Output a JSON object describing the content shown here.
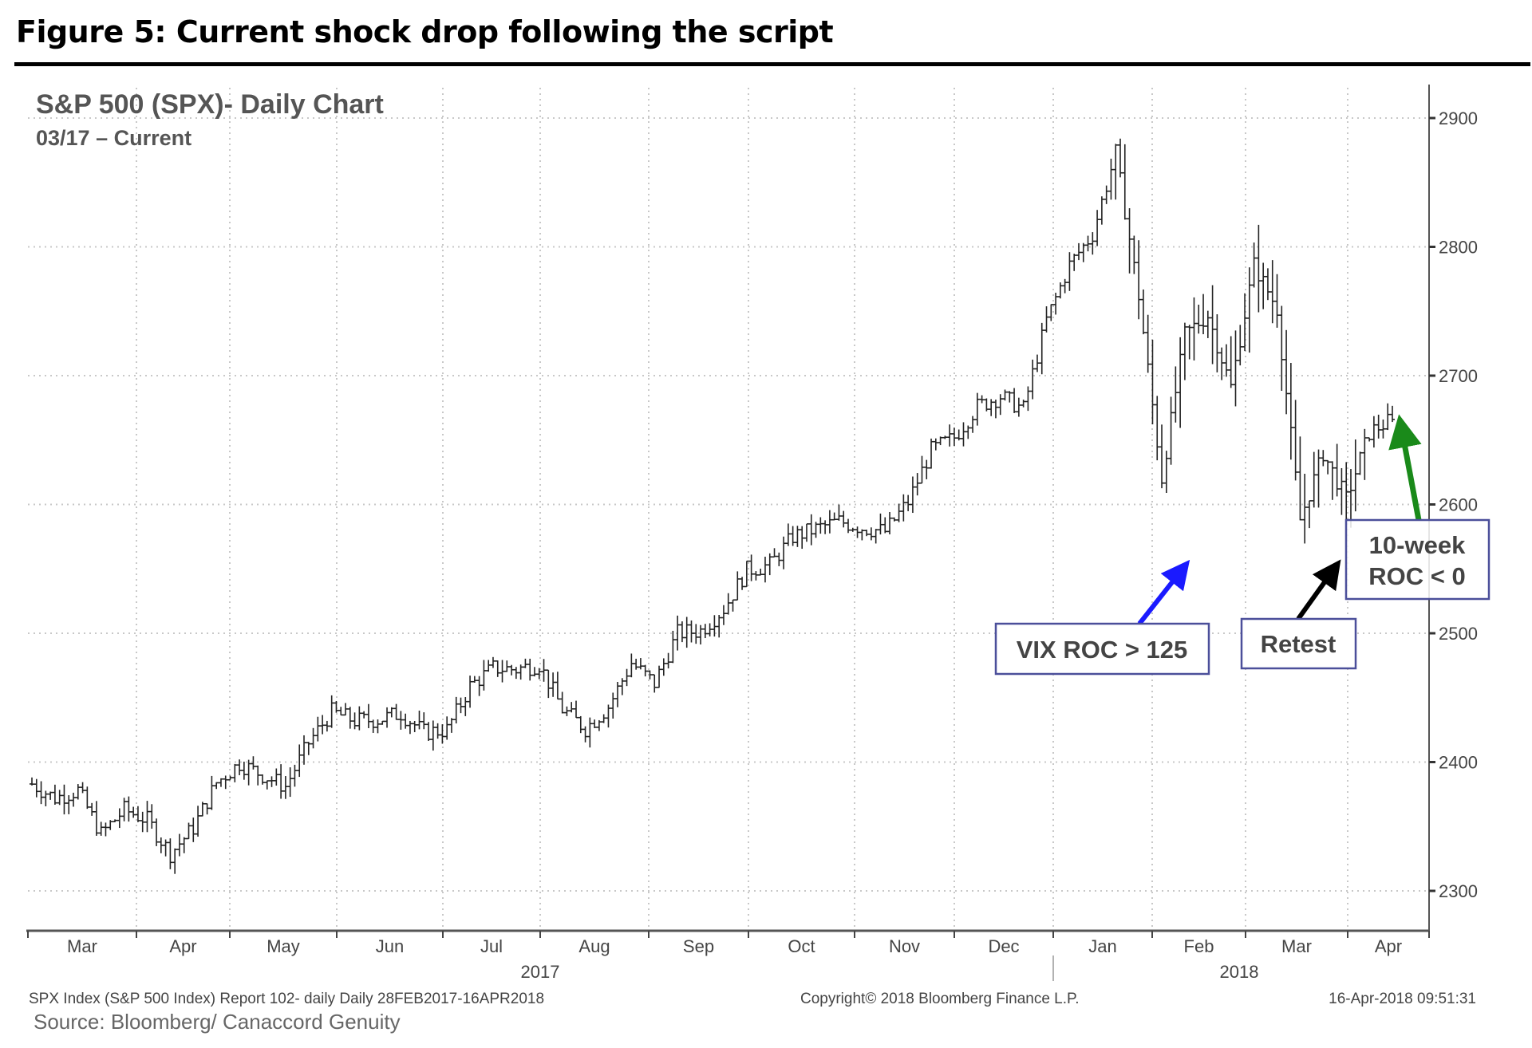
{
  "figure_title": "Figure 5: Current shock drop following the script",
  "chart_data": {
    "type": "bar",
    "subtype": "ohlc-daily",
    "title": "S&P 500 (SPX)- Daily Chart",
    "subtitle": "03/17 – Current",
    "ylim": [
      2270,
      2920
    ],
    "yticks": [
      2300,
      2400,
      2500,
      2600,
      2700,
      2800,
      2900
    ],
    "ytick_labels": [
      "2300",
      "2400",
      "2500",
      "2600",
      "2700",
      "2800",
      "2900"
    ],
    "y_axis_position": "right",
    "months": [
      "Mar",
      "Apr",
      "May",
      "Jun",
      "Jul",
      "Aug",
      "Sep",
      "Oct",
      "Nov",
      "Dec",
      "Jan",
      "Feb",
      "Mar",
      "Apr"
    ],
    "years": [
      "2017",
      "2018"
    ],
    "grid": true,
    "weekly_closes_approx": [
      2383,
      2372,
      2378,
      2344,
      2363,
      2355,
      2329,
      2349,
      2384,
      2399,
      2390,
      2381,
      2415,
      2439,
      2432,
      2433,
      2438,
      2423,
      2425,
      2459,
      2473,
      2472,
      2476,
      2441,
      2426,
      2443,
      2477,
      2461,
      2500,
      2502,
      2519,
      2549,
      2553,
      2575,
      2581,
      2587,
      2582,
      2579,
      2602,
      2642,
      2652,
      2676,
      2684,
      2674,
      2743,
      2786,
      2810,
      2873,
      2762,
      2620,
      2732,
      2747,
      2691,
      2786,
      2752,
      2588,
      2640,
      2604,
      2656,
      2666
    ],
    "annotations": [
      {
        "text": "VIX ROC > 125",
        "arrow_color": "#1a1aff"
      },
      {
        "text": "Retest",
        "arrow_color": "#000000"
      },
      {
        "text_line1": "10-week",
        "text_line2": "ROC < 0",
        "arrow_color": "#1a8a1a"
      }
    ]
  },
  "footer": {
    "left": "SPX Index (S&P 500 Index) Report 102- daily  Daily 28FEB2017-16APR2018",
    "center": "Copyright© 2018 Bloomberg Finance L.P.",
    "right": "16-Apr-2018 09:51:31",
    "source": "Source: Bloomberg/ Canaccord Genuity"
  }
}
